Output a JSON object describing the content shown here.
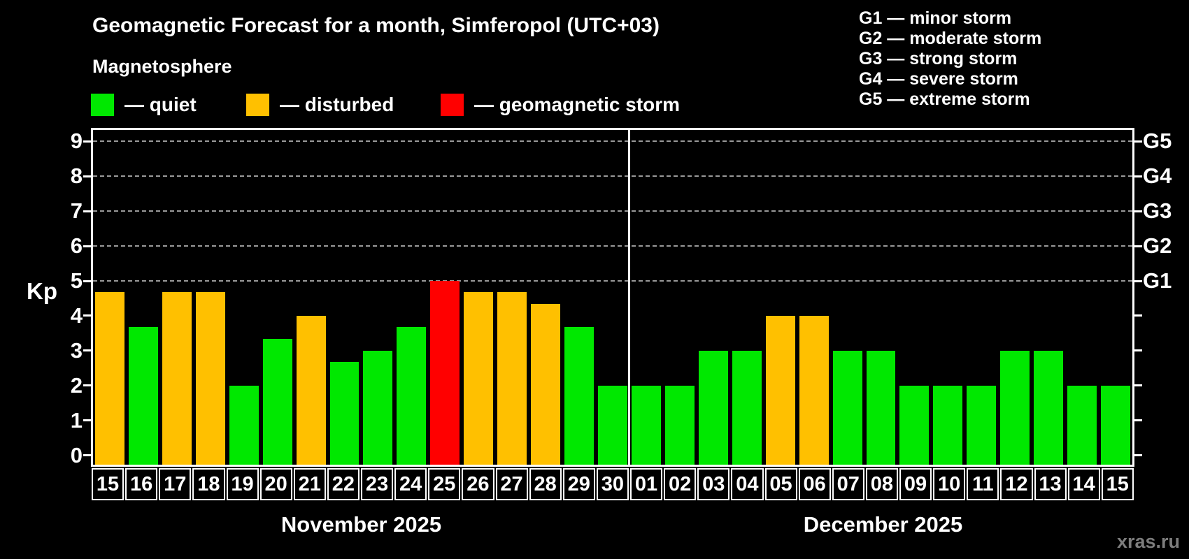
{
  "page": {
    "title": "Geomagnetic Forecast for a month, Simferopol (UTC+03)",
    "subtitle": "Magnetosphere",
    "y_axis_label": "Kp",
    "watermark": "xras.ru"
  },
  "legend": {
    "items": [
      {
        "key": "quiet",
        "label": "— quiet",
        "color": "#00e800",
        "x": 130
      },
      {
        "key": "disturbed",
        "label": "— disturbed",
        "color": "#ffc000",
        "x": 352
      },
      {
        "key": "storm",
        "label": "— geomagnetic storm",
        "color": "#ff0000",
        "x": 630
      }
    ]
  },
  "g_scale_legend": [
    "G1 — minor storm",
    "G2 — moderate storm",
    "G3 — strong storm",
    "G4 — severe storm",
    "G5 — extreme storm"
  ],
  "colors": {
    "quiet": "#00e800",
    "disturbed": "#ffc000",
    "storm": "#ff0000",
    "background": "#000000",
    "grid": "#999999",
    "frame": "#ffffff",
    "watermark": "#7d7d7d"
  },
  "chart_data": {
    "type": "bar",
    "title": "Geomagnetic Forecast for a month, Simferopol (UTC+03)",
    "ylabel": "Kp",
    "ylim": [
      0,
      9
    ],
    "yticks": [
      0,
      1,
      2,
      3,
      4,
      5,
      6,
      7,
      8,
      9
    ],
    "gridlines_at": [
      5,
      6,
      7,
      8,
      9
    ],
    "grid": "dashed",
    "right_axis": [
      {
        "kp": 5,
        "label": "G1"
      },
      {
        "kp": 6,
        "label": "G2"
      },
      {
        "kp": 7,
        "label": "G3"
      },
      {
        "kp": 8,
        "label": "G4"
      },
      {
        "kp": 9,
        "label": "G5"
      }
    ],
    "months": [
      {
        "label": "November 2025",
        "days": [
          {
            "day": "15",
            "kp": 4.67,
            "status": "disturbed"
          },
          {
            "day": "16",
            "kp": 3.67,
            "status": "quiet"
          },
          {
            "day": "17",
            "kp": 4.67,
            "status": "disturbed"
          },
          {
            "day": "18",
            "kp": 4.67,
            "status": "disturbed"
          },
          {
            "day": "19",
            "kp": 2.0,
            "status": "quiet"
          },
          {
            "day": "20",
            "kp": 3.33,
            "status": "quiet"
          },
          {
            "day": "21",
            "kp": 4.0,
            "status": "disturbed"
          },
          {
            "day": "22",
            "kp": 2.67,
            "status": "quiet"
          },
          {
            "day": "23",
            "kp": 3.0,
            "status": "quiet"
          },
          {
            "day": "24",
            "kp": 3.67,
            "status": "quiet"
          },
          {
            "day": "25",
            "kp": 5.0,
            "status": "storm"
          },
          {
            "day": "26",
            "kp": 4.67,
            "status": "disturbed"
          },
          {
            "day": "27",
            "kp": 4.67,
            "status": "disturbed"
          },
          {
            "day": "28",
            "kp": 4.33,
            "status": "disturbed"
          },
          {
            "day": "29",
            "kp": 3.67,
            "status": "quiet"
          },
          {
            "day": "30",
            "kp": 2.0,
            "status": "quiet"
          }
        ]
      },
      {
        "label": "December 2025",
        "days": [
          {
            "day": "01",
            "kp": 2.0,
            "status": "quiet"
          },
          {
            "day": "02",
            "kp": 2.0,
            "status": "quiet"
          },
          {
            "day": "03",
            "kp": 3.0,
            "status": "quiet"
          },
          {
            "day": "04",
            "kp": 3.0,
            "status": "quiet"
          },
          {
            "day": "05",
            "kp": 4.0,
            "status": "disturbed"
          },
          {
            "day": "06",
            "kp": 4.0,
            "status": "disturbed"
          },
          {
            "day": "07",
            "kp": 3.0,
            "status": "quiet"
          },
          {
            "day": "08",
            "kp": 3.0,
            "status": "quiet"
          },
          {
            "day": "09",
            "kp": 2.0,
            "status": "quiet"
          },
          {
            "day": "10",
            "kp": 2.0,
            "status": "quiet"
          },
          {
            "day": "11",
            "kp": 2.0,
            "status": "quiet"
          },
          {
            "day": "12",
            "kp": 3.0,
            "status": "quiet"
          },
          {
            "day": "13",
            "kp": 3.0,
            "status": "quiet"
          },
          {
            "day": "14",
            "kp": 2.0,
            "status": "quiet"
          },
          {
            "day": "15",
            "kp": 2.0,
            "status": "quiet"
          }
        ]
      }
    ]
  }
}
